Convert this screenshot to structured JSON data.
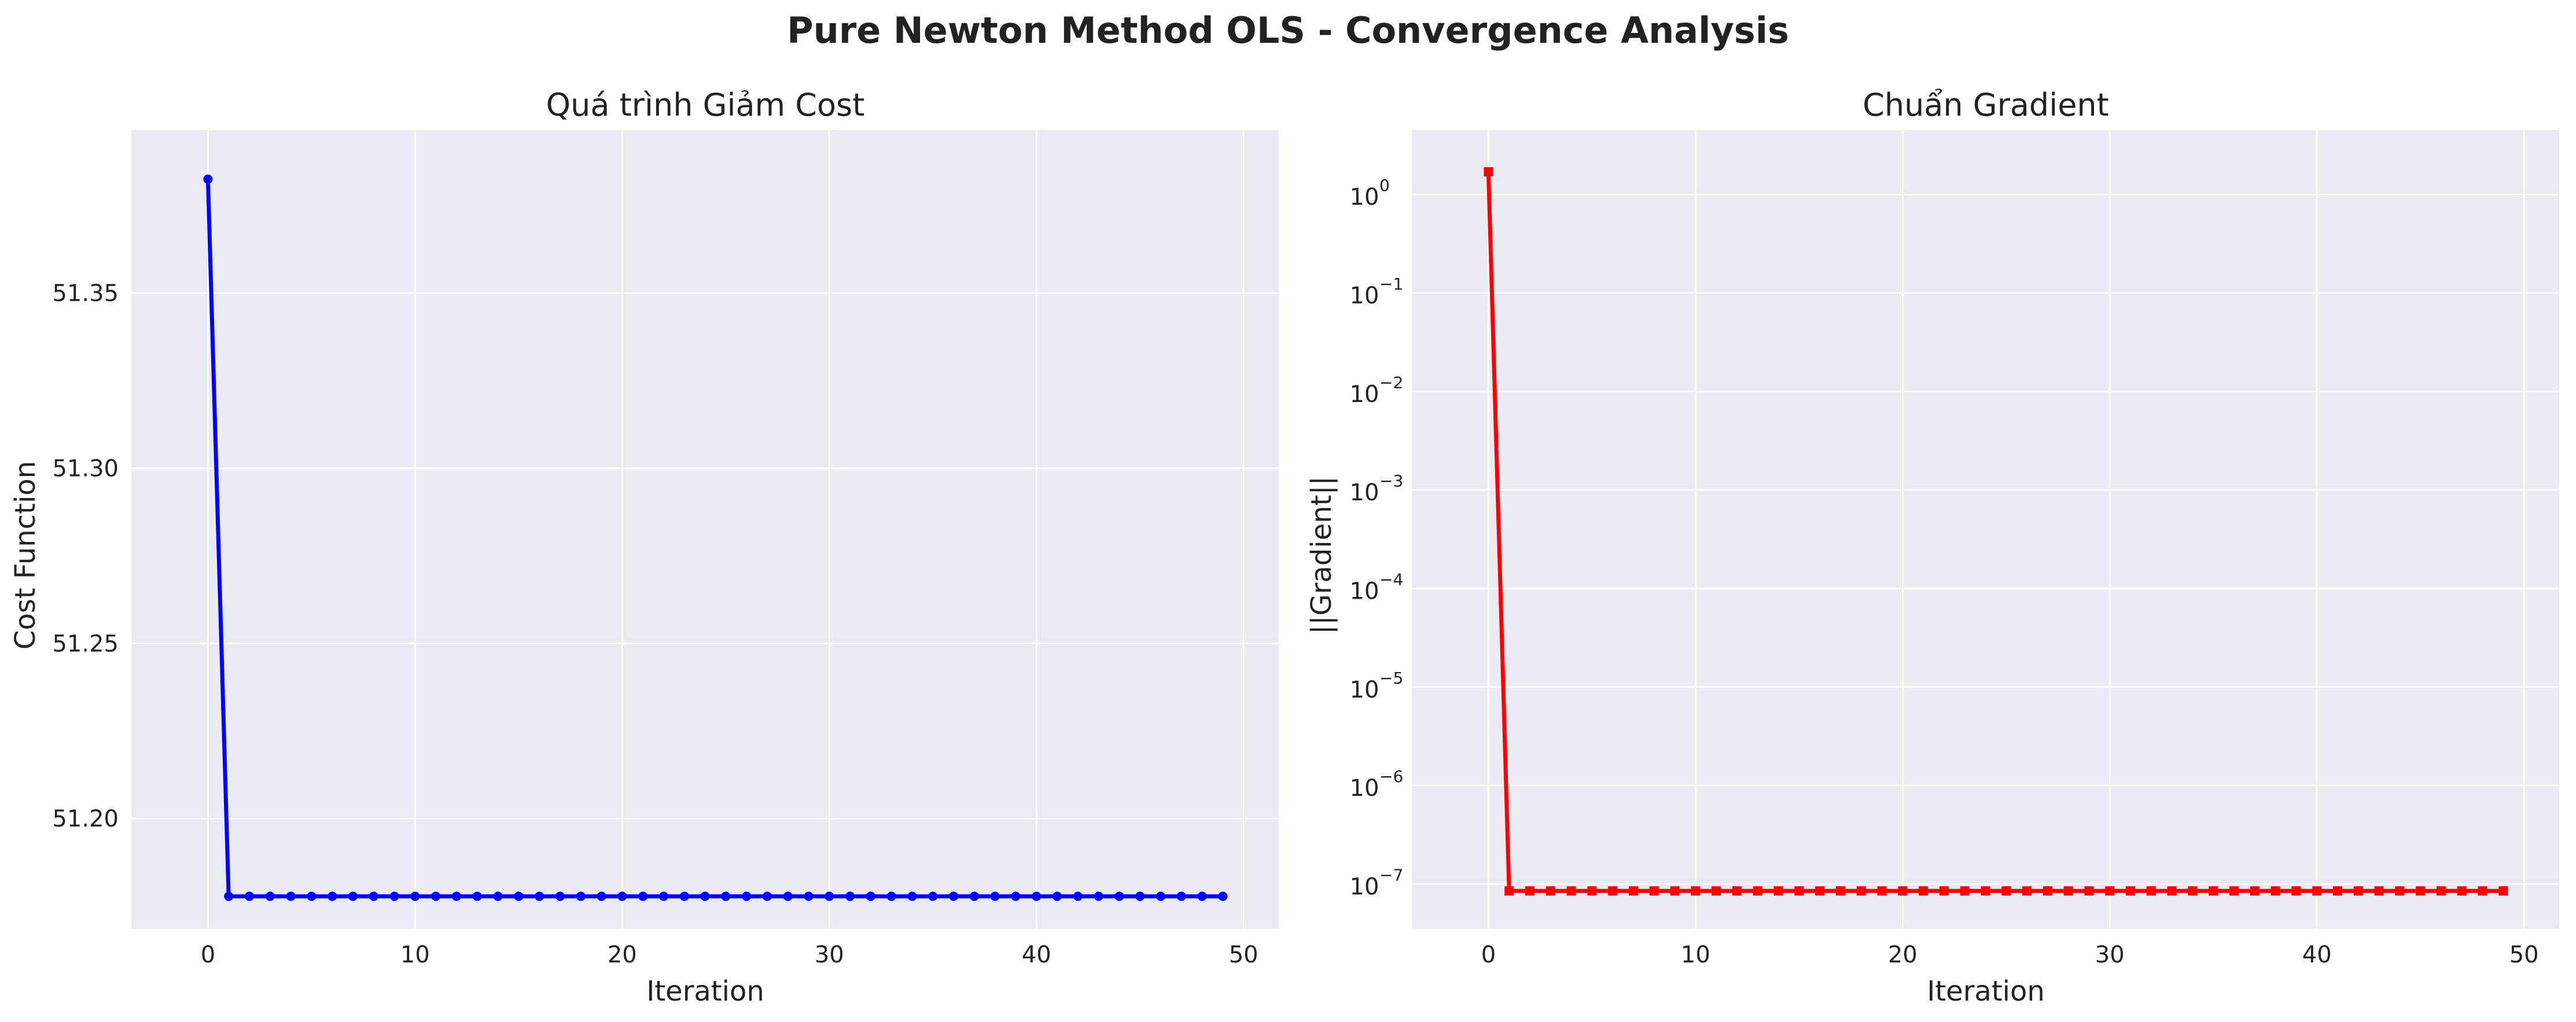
{
  "figure_title": "Pure Newton Method OLS - Convergence Analysis",
  "colors": {
    "axes_bg": "#EAEAF2",
    "grid": "#FFFFFF",
    "cost_line": "#0000FF",
    "grad_line": "#FF0000"
  },
  "chart_data": [
    {
      "type": "line",
      "title": "Quá trình Giảm Cost",
      "xlabel": "Iteration",
      "ylabel": "Cost Function",
      "xlim": [
        -3.7,
        51.7
      ],
      "ylim": [
        51.1685,
        51.3965
      ],
      "xticks": [
        0,
        10,
        20,
        30,
        40,
        50
      ],
      "xtick_labels": [
        "0",
        "10",
        "20",
        "30",
        "40",
        "50"
      ],
      "yticks": [
        51.2,
        51.25,
        51.3,
        51.35
      ],
      "ytick_labels": [
        "51.20",
        "51.25",
        "51.30",
        "51.35"
      ],
      "grid": true,
      "marker": "circle",
      "color": "#0000FF",
      "x_start": 0,
      "initial_value": 51.3825,
      "converged_value": 51.1778,
      "n_points": 50
    },
    {
      "type": "line",
      "title": "Chuẩn Gradient",
      "xlabel": "Iteration",
      "ylabel": "||Gradient||",
      "yscale": "log",
      "xlim": [
        -3.7,
        51.7
      ],
      "ylim": [
        3.5e-08,
        4.5
      ],
      "xticks": [
        0,
        10,
        20,
        30,
        40,
        50
      ],
      "xtick_labels": [
        "0",
        "10",
        "20",
        "30",
        "40",
        "50"
      ],
      "yticks": [
        1e-07,
        1e-06,
        1e-05,
        0.0001,
        0.001,
        0.01,
        0.1,
        1
      ],
      "ytick_labels": [
        {
          "base": "10",
          "exp": "−7"
        },
        {
          "base": "10",
          "exp": "−6"
        },
        {
          "base": "10",
          "exp": "−5"
        },
        {
          "base": "10",
          "exp": "−4"
        },
        {
          "base": "10",
          "exp": "−3"
        },
        {
          "base": "10",
          "exp": "−2"
        },
        {
          "base": "10",
          "exp": "−1"
        },
        {
          "base": "10",
          "exp": "0"
        }
      ],
      "grid": true,
      "marker": "square",
      "color": "#FF0000",
      "x_start": 0,
      "initial_value": 1.7,
      "converged_value": 8.5e-08,
      "n_points": 50
    }
  ]
}
